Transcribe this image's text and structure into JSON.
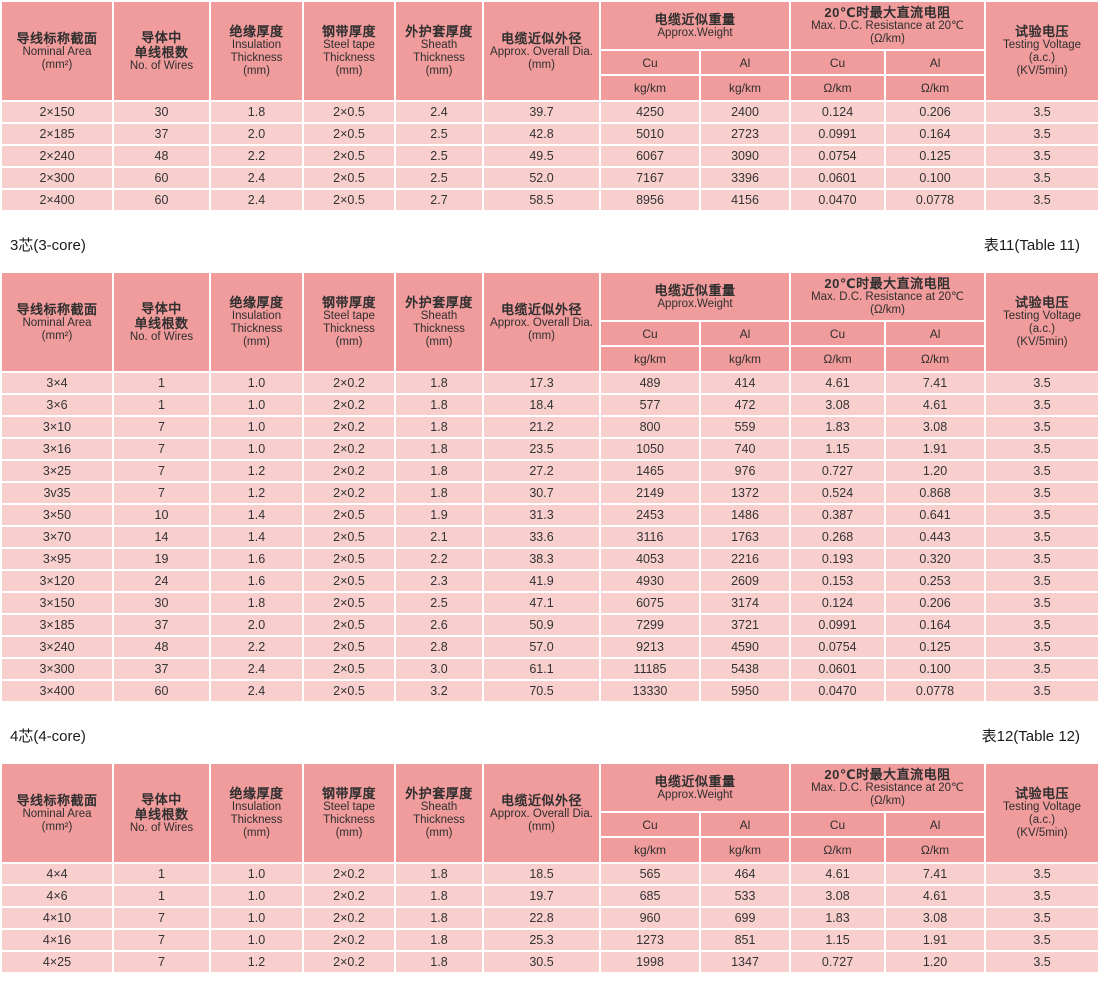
{
  "styles": {
    "header_bg": "#f09b9c",
    "row_bg": "#f8cfcd",
    "grid_color": "#ffffff",
    "text_color": "#333333"
  },
  "header": {
    "simple_cols": [
      [
        "导线标称截面",
        "Nominal Area",
        "(mm²)"
      ],
      [
        "导体中",
        "单线根数",
        "No. of Wires"
      ],
      [
        "绝缘厚度",
        "Insulation",
        "Thickness",
        "(mm)"
      ],
      [
        "钢带厚度",
        "Steel tape",
        "Thickness",
        "(mm)"
      ],
      [
        "外护套厚度",
        "Sheath",
        "Thickness",
        "(mm)"
      ],
      [
        "电缆近似外径",
        "Approx. Overall Dia.",
        "(mm)"
      ]
    ],
    "weight_group": [
      "电缆近似重量",
      "Approx.Weight"
    ],
    "resistance_group": [
      "20℃时最大直流电阻",
      "Max. D.C. Resistance at 20℃",
      "(Ω/km)"
    ],
    "metal_sub": [
      "Cu",
      "Al",
      "Cu",
      "Al"
    ],
    "unit_sub": [
      "kg/km",
      "kg/km",
      "Ω/km",
      "Ω/km"
    ],
    "testing_col": [
      "试验电压",
      "Testing Voltage",
      "(a.c.)",
      "(KV/5min)"
    ]
  },
  "sections": [
    {
      "label": "",
      "table_label": "",
      "rows": [
        [
          "2×150",
          "30",
          "1.8",
          "2×0.5",
          "2.4",
          "39.7",
          "4250",
          "2400",
          "0.124",
          "0.206",
          "3.5"
        ],
        [
          "2×185",
          "37",
          "2.0",
          "2×0.5",
          "2.5",
          "42.8",
          "5010",
          "2723",
          "0.0991",
          "0.164",
          "3.5"
        ],
        [
          "2×240",
          "48",
          "2.2",
          "2×0.5",
          "2.5",
          "49.5",
          "6067",
          "3090",
          "0.0754",
          "0.125",
          "3.5"
        ],
        [
          "2×300",
          "60",
          "2.4",
          "2×0.5",
          "2.5",
          "52.0",
          "7167",
          "3396",
          "0.0601",
          "0.100",
          "3.5"
        ],
        [
          "2×400",
          "60",
          "2.4",
          "2×0.5",
          "2.7",
          "58.5",
          "8956",
          "4156",
          "0.0470",
          "0.0778",
          "3.5"
        ]
      ]
    },
    {
      "label": "3芯(3-core)",
      "table_label": "表11(Table 11)",
      "rows": [
        [
          "3×4",
          "1",
          "1.0",
          "2×0.2",
          "1.8",
          "17.3",
          "489",
          "414",
          "4.61",
          "7.41",
          "3.5"
        ],
        [
          "3×6",
          "1",
          "1.0",
          "2×0.2",
          "1.8",
          "18.4",
          "577",
          "472",
          "3.08",
          "4.61",
          "3.5"
        ],
        [
          "3×10",
          "7",
          "1.0",
          "2×0.2",
          "1.8",
          "21.2",
          "800",
          "559",
          "1.83",
          "3.08",
          "3.5"
        ],
        [
          "3×16",
          "7",
          "1.0",
          "2×0.2",
          "1.8",
          "23.5",
          "1050",
          "740",
          "1.15",
          "1.91",
          "3.5"
        ],
        [
          "3×25",
          "7",
          "1.2",
          "2×0.2",
          "1.8",
          "27.2",
          "1465",
          "976",
          "0.727",
          "1.20",
          "3.5"
        ],
        [
          "3v35",
          "7",
          "1.2",
          "2×0.2",
          "1.8",
          "30.7",
          "2149",
          "1372",
          "0.524",
          "0.868",
          "3.5"
        ],
        [
          "3×50",
          "10",
          "1.4",
          "2×0.5",
          "1.9",
          "31.3",
          "2453",
          "1486",
          "0.387",
          "0.641",
          "3.5"
        ],
        [
          "3×70",
          "14",
          "1.4",
          "2×0.5",
          "2.1",
          "33.6",
          "3116",
          "1763",
          "0.268",
          "0.443",
          "3.5"
        ],
        [
          "3×95",
          "19",
          "1.6",
          "2×0.5",
          "2.2",
          "38.3",
          "4053",
          "2216",
          "0.193",
          "0.320",
          "3.5"
        ],
        [
          "3×120",
          "24",
          "1.6",
          "2×0.5",
          "2.3",
          "41.9",
          "4930",
          "2609",
          "0.153",
          "0.253",
          "3.5"
        ],
        [
          "3×150",
          "30",
          "1.8",
          "2×0.5",
          "2.5",
          "47.1",
          "6075",
          "3174",
          "0.124",
          "0.206",
          "3.5"
        ],
        [
          "3×185",
          "37",
          "2.0",
          "2×0.5",
          "2.6",
          "50.9",
          "7299",
          "3721",
          "0.0991",
          "0.164",
          "3.5"
        ],
        [
          "3×240",
          "48",
          "2.2",
          "2×0.5",
          "2.8",
          "57.0",
          "9213",
          "4590",
          "0.0754",
          "0.125",
          "3.5"
        ],
        [
          "3×300",
          "37",
          "2.4",
          "2×0.5",
          "3.0",
          "61.1",
          "11185",
          "5438",
          "0.0601",
          "0.100",
          "3.5"
        ],
        [
          "3×400",
          "60",
          "2.4",
          "2×0.5",
          "3.2",
          "70.5",
          "13330",
          "5950",
          "0.0470",
          "0.0778",
          "3.5"
        ]
      ]
    },
    {
      "label": "4芯(4-core)",
      "table_label": "表12(Table 12)",
      "rows": [
        [
          "4×4",
          "1",
          "1.0",
          "2×0.2",
          "1.8",
          "18.5",
          "565",
          "464",
          "4.61",
          "7.41",
          "3.5"
        ],
        [
          "4×6",
          "1",
          "1.0",
          "2×0.2",
          "1.8",
          "19.7",
          "685",
          "533",
          "3.08",
          "4.61",
          "3.5"
        ],
        [
          "4×10",
          "7",
          "1.0",
          "2×0.2",
          "1.8",
          "22.8",
          "960",
          "699",
          "1.83",
          "3.08",
          "3.5"
        ],
        [
          "4×16",
          "7",
          "1.0",
          "2×0.2",
          "1.8",
          "25.3",
          "1273",
          "851",
          "1.15",
          "1.91",
          "3.5"
        ],
        [
          "4×25",
          "7",
          "1.2",
          "2×0.2",
          "1.8",
          "30.5",
          "1998",
          "1347",
          "0.727",
          "1.20",
          "3.5"
        ]
      ]
    }
  ]
}
